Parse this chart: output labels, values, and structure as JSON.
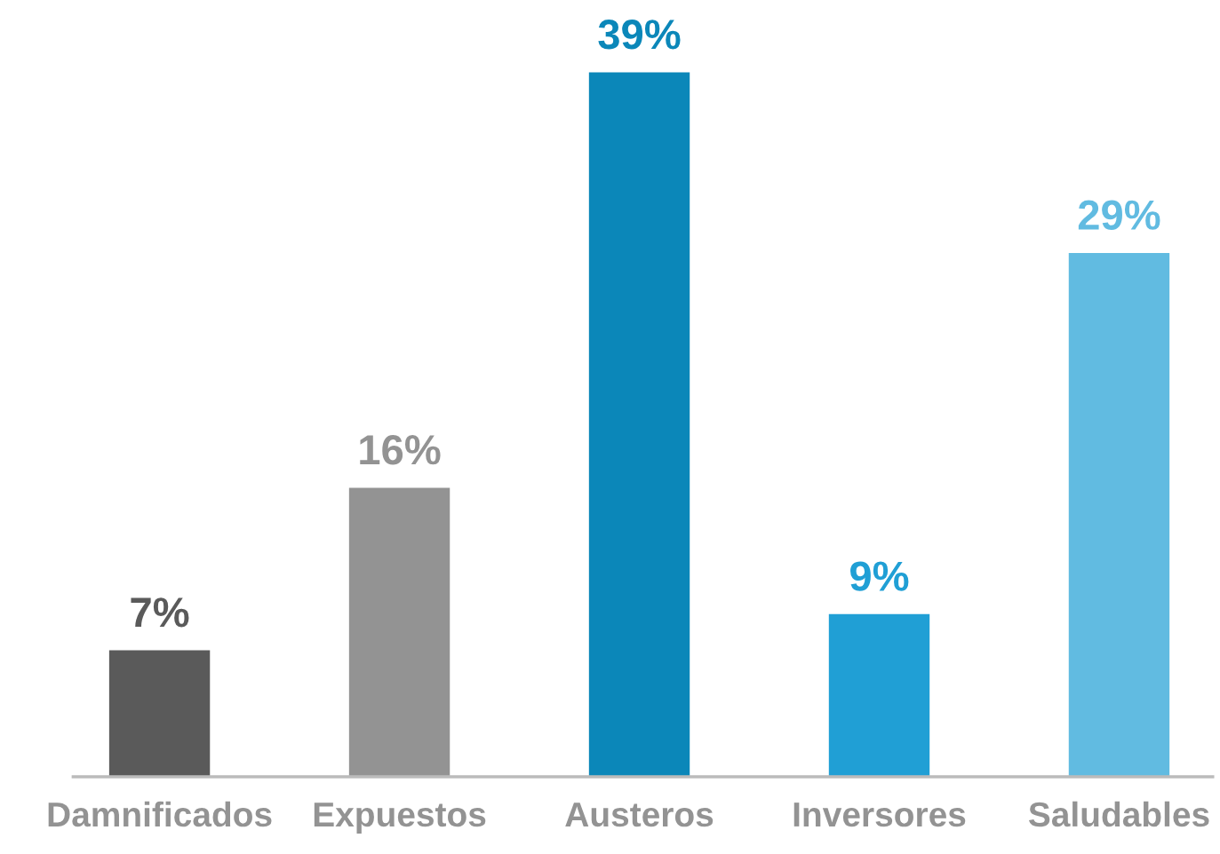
{
  "chart_data": {
    "type": "bar",
    "categories": [
      "Damnificados",
      "Expuestos",
      "Austeros",
      "Inversores",
      "Saludables"
    ],
    "values": [
      7,
      16,
      39,
      9,
      29
    ],
    "colors": [
      "#5a5a5a",
      "#939393",
      "#0b87b9",
      "#209fd5",
      "#61bbe1"
    ],
    "value_labels": [
      "7%",
      "16%",
      "39%",
      "9%",
      "29%"
    ],
    "tick_labels": "x"
  }
}
